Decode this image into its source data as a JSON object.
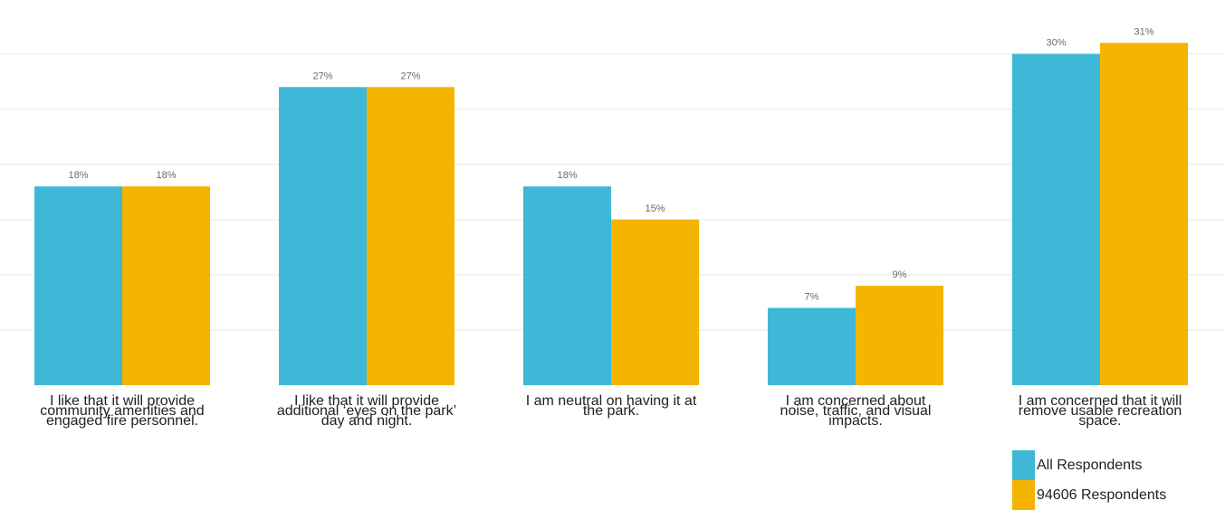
{
  "chart_data": {
    "type": "bar",
    "categories": [
      "I like that it will provide community amenities and engaged fire personnel.",
      "I like that it will provide additional ‘eyes on the park’ day and night.",
      "I am neutral on having it at the park.",
      "I am concerned about noise, traffic, and visual impacts.",
      "I am concerned that it will remove usable recreation space."
    ],
    "category_lines": [
      [
        "I like that it will provide",
        "community amenities and",
        "engaged fire personnel."
      ],
      [
        "I like that it will provide",
        "additional ‘eyes on the park’",
        "day and night."
      ],
      [
        "I am neutral on having it at",
        "the park."
      ],
      [
        "I am concerned about",
        "noise, traffic, and visual",
        "impacts."
      ],
      [
        "I am concerned that it will",
        "remove usable recreation",
        "space."
      ]
    ],
    "series": [
      {
        "name": "All Respondents",
        "values": [
          18,
          27,
          18,
          7,
          30
        ],
        "labels": [
          "18%",
          "27%",
          "18%",
          "7%",
          "30%"
        ],
        "color": "#3fb8d8"
      },
      {
        "name": "94606 Respondents",
        "values": [
          18,
          27,
          15,
          9,
          31
        ],
        "labels": [
          "18%",
          "27%",
          "15%",
          "9%",
          "31%"
        ],
        "color": "#f5b400"
      }
    ],
    "ylim": [
      0,
      33
    ],
    "grid": true,
    "legend_position": "bottom-right"
  }
}
